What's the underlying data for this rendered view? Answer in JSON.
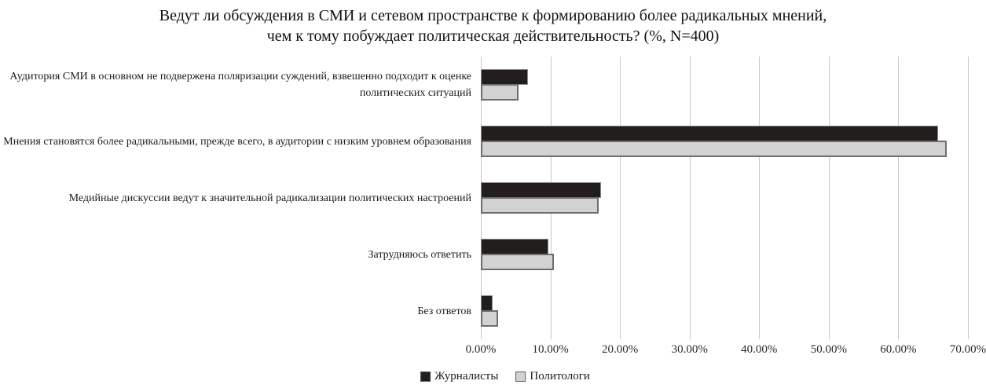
{
  "title_lines": [
    "Ведут ли обсуждения в СМИ и сетевом пространстве к формированию более радикальных мнений,",
    "чем к тому побуждает политическая действительность? (%, N=400)"
  ],
  "colors": {
    "series_journalists": "#221e1d",
    "series_politologists": "#d2d2d2",
    "bar_border_dark": "#8a8a8a",
    "bar_border_gray": "#6e6e6e",
    "gridline": "#c8c8c8",
    "text": "#1a1a1a"
  },
  "chart_data": {
    "type": "bar",
    "orientation": "horizontal",
    "title": "Ведут ли обсуждения в СМИ и сетевом пространстве к формированию более радикальных мнений, чем к тому побуждает политическая действительность? (%, N=400)",
    "categories": [
      "Аудитория СМИ в основном не подвержена поляризации суждений, взвешенно подходит к оценке политических ситуаций",
      "Мнения становятся более радикальными, прежде всего, в аудитории с низким уровнем образования",
      "Медийные дискуссии ведут к значительной радикализации политических настроений",
      "Затрудняюсь ответить",
      "Без ответов"
    ],
    "series": [
      {
        "name": "Журналисты",
        "color": "#221e1d",
        "values": [
          6.5,
          65.5,
          17.0,
          9.5,
          1.5
        ]
      },
      {
        "name": "Политологи",
        "color": "#d2d2d2",
        "values": [
          5.0,
          66.5,
          16.5,
          10.0,
          2.0
        ]
      }
    ],
    "xlim": [
      0,
      70
    ],
    "x_tick_labels": [
      "0.00%",
      "10.00%",
      "20.00%",
      "30.00%",
      "40.00%",
      "50.00%",
      "60.00%",
      "70.00%"
    ],
    "grid": true,
    "legend_position": "bottom"
  }
}
